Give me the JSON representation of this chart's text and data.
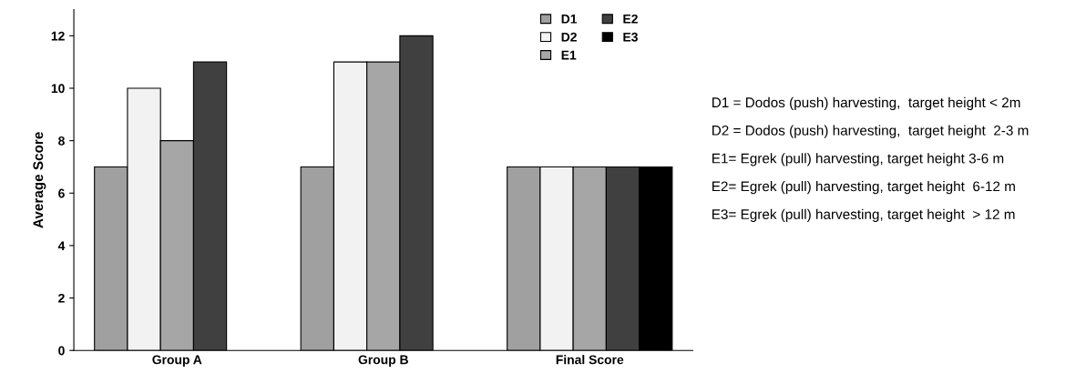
{
  "chart_data": {
    "type": "bar",
    "ylabel": "Average Score",
    "categories": [
      "Group A",
      "Group B",
      "Final Score"
    ],
    "series": [
      {
        "name": "D1",
        "color": "#a0a0a0",
        "values": [
          7,
          7,
          7
        ]
      },
      {
        "name": "D2",
        "color": "#f2f2f2",
        "values": [
          10,
          11,
          7
        ]
      },
      {
        "name": "E1",
        "color": "#a6a6a6",
        "values": [
          8,
          11,
          7
        ]
      },
      {
        "name": "E2",
        "color": "#404040",
        "values": [
          11,
          12,
          7
        ]
      },
      {
        "name": "E3",
        "color": "#000000",
        "values": [
          null,
          null,
          7
        ]
      }
    ],
    "ylim": [
      0,
      13
    ],
    "yticks": [
      0,
      2,
      4,
      6,
      8,
      10,
      12
    ],
    "grid": false,
    "legend": "top right",
    "annotations": [
      "D1 = Dodos (push) harvesting,  target height < 2m",
      "D2 = Dodos (push) harvesting,  target height  2-3 m",
      "E1= Egrek (pull) harvesting, target height 3-6 m",
      "E2= Egrek (pull) harvesting, target height  6-12 m",
      "E3= Egrek (pull) harvesting, target height  > 12 m"
    ]
  }
}
